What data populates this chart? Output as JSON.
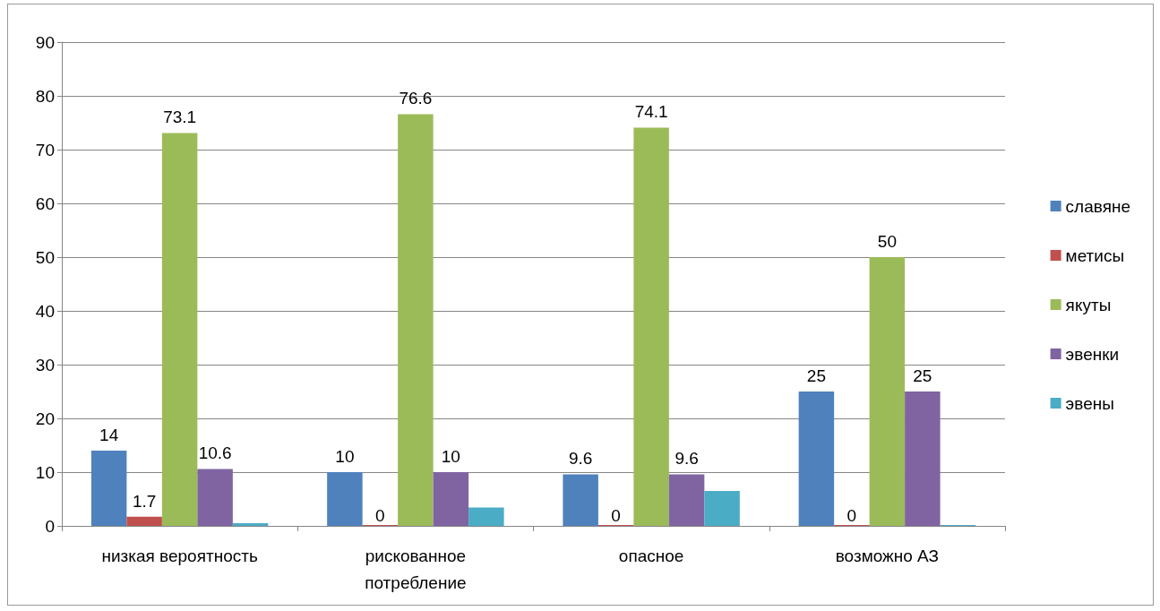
{
  "chart_data": {
    "type": "bar",
    "categories": [
      "низкая вероятность",
      "рискованное потребление",
      "опасное",
      "возможно АЗ"
    ],
    "series": [
      {
        "name": "славяне",
        "color": "#4f81bd",
        "values": [
          14,
          10,
          9.6,
          25
        ],
        "value_labels": [
          "14",
          "10",
          "9.6",
          "25"
        ]
      },
      {
        "name": "метисы",
        "color": "#c0504d",
        "values": [
          1.7,
          0,
          0,
          0
        ],
        "value_labels": [
          "1.7",
          "0",
          "0",
          "0"
        ]
      },
      {
        "name": "якуты",
        "color": "#9bbb59",
        "values": [
          73.1,
          76.6,
          74.1,
          50
        ],
        "value_labels": [
          "73.1",
          "76.6",
          "74.1",
          "50"
        ]
      },
      {
        "name": "эвенки",
        "color": "#8064a2",
        "values": [
          10.6,
          10,
          9.6,
          25
        ],
        "value_labels": [
          "10.6",
          "10",
          "9.6",
          "25"
        ]
      },
      {
        "name": "эвены",
        "color": "#4bacc6",
        "values": [
          0.5,
          3.4,
          6.5,
          0
        ]
      }
    ],
    "ylim": [
      0,
      90
    ],
    "yticks": [
      0,
      10,
      20,
      30,
      40,
      50,
      60,
      70,
      80,
      90
    ],
    "grid": "y",
    "legend": "right"
  }
}
